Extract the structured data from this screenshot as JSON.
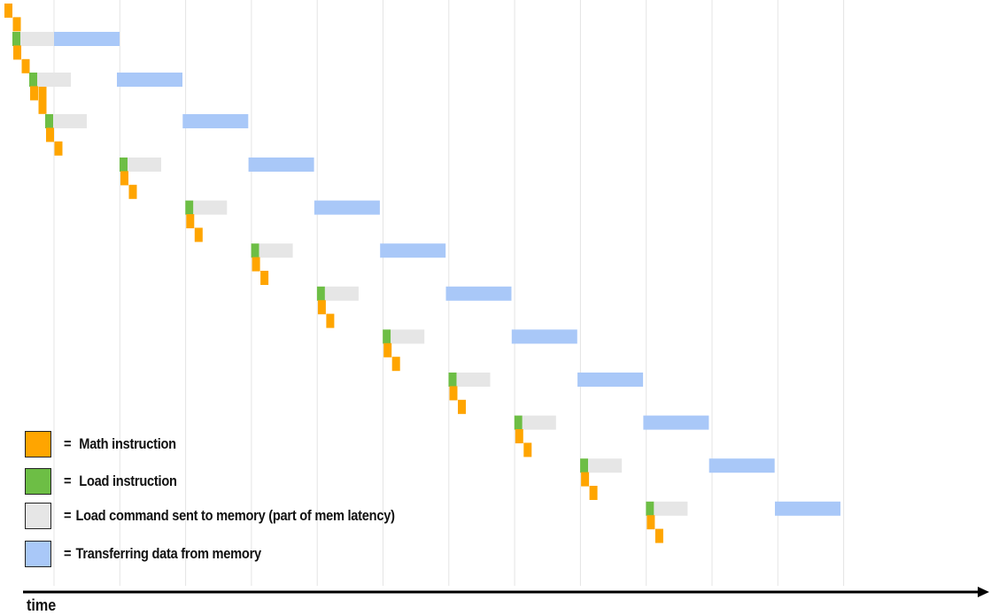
{
  "colors": {
    "math": "#FFA500",
    "load": "#6DBE45",
    "mem_command": "#E6E6E6",
    "transfer": "#A9C8F8",
    "grid": "#E4E4E4",
    "axis": "#000000"
  },
  "legend": [
    {
      "key": "math",
      "eq": "=",
      "label": "Math instruction"
    },
    {
      "key": "load",
      "eq": "=",
      "label": "Load instruction"
    },
    {
      "key": "mem_command",
      "eq": "=",
      "label": "Load command sent to memory (part of mem latency)"
    },
    {
      "key": "transfer",
      "eq": "=",
      "label": "Transferring data from memory"
    }
  ],
  "axis": {
    "label": "time"
  },
  "timeline": {
    "grid_lines": 13,
    "groups": 12,
    "first_group": {
      "math_before": 2,
      "math_after": 4
    },
    "other_groups": {
      "math_after": 2
    }
  }
}
